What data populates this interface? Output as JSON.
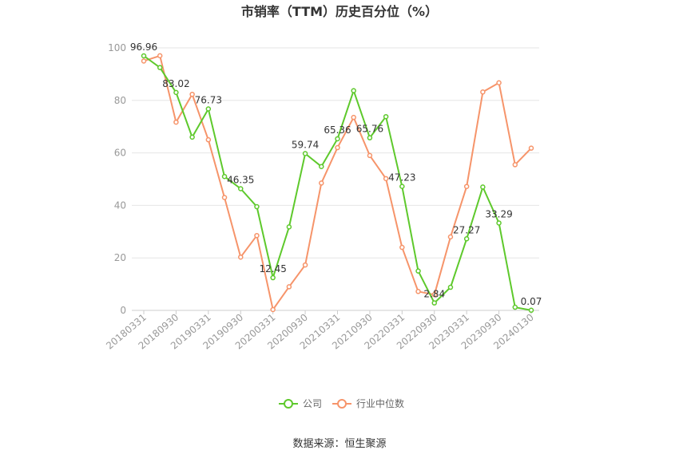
{
  "chart_data": {
    "type": "line",
    "title": "市销率（TTM）历史百分位（%）",
    "xlabel": "",
    "ylabel": "",
    "ylim": [
      0,
      100
    ],
    "yticks": [
      0,
      20,
      40,
      60,
      80,
      100
    ],
    "grid": "horizontal",
    "legend_position": "bottom",
    "x": [
      "20180331",
      "20180630",
      "20180930",
      "20181231",
      "20190331",
      "20190630",
      "20190930",
      "20191231",
      "20200331",
      "20200630",
      "20200930",
      "20201231",
      "20210331",
      "20210630",
      "20210930",
      "20211231",
      "20220331",
      "20220630",
      "20220930",
      "20221231",
      "20230331",
      "20230630",
      "20230930",
      "20231231",
      "20240130"
    ],
    "xtick_labels": [
      "20180331",
      "20180930",
      "20190331",
      "20190930",
      "20200331",
      "20200930",
      "20210331",
      "20210930",
      "20220331",
      "20220930",
      "20230331",
      "20230930",
      "20240130"
    ],
    "xtick_indices": [
      0,
      2,
      4,
      6,
      8,
      10,
      12,
      14,
      16,
      18,
      20,
      22,
      24
    ],
    "series": [
      {
        "name": "公司",
        "color": "#5ec92c",
        "values": [
          96.96,
          92.5,
          83.02,
          66.0,
          76.73,
          51.0,
          46.35,
          39.5,
          12.45,
          31.8,
          59.74,
          54.8,
          65.36,
          83.7,
          65.76,
          73.8,
          47.23,
          15.0,
          2.84,
          8.8,
          27.27,
          47.0,
          33.29,
          1.2,
          0.07
        ],
        "labels": {
          "0": "96.96",
          "2": "83.02",
          "4": "76.73",
          "6": "46.35",
          "8": "12.45",
          "10": "59.74",
          "12": "65.36",
          "14": "65.76",
          "16": "47.23",
          "18": "2.84",
          "20": "27.27",
          "22": "33.29",
          "24": "0.07"
        }
      },
      {
        "name": "行业中位数",
        "color": "#f6946a",
        "values": [
          95.0,
          97.0,
          71.7,
          82.3,
          65.0,
          43.0,
          20.3,
          28.5,
          0.3,
          9.0,
          17.3,
          48.5,
          62.0,
          73.5,
          59.0,
          50.2,
          24.0,
          7.2,
          6.0,
          28.0,
          47.2,
          83.2,
          86.7,
          55.5,
          61.8
        ]
      }
    ],
    "source": "数据来源：恒生聚源"
  }
}
